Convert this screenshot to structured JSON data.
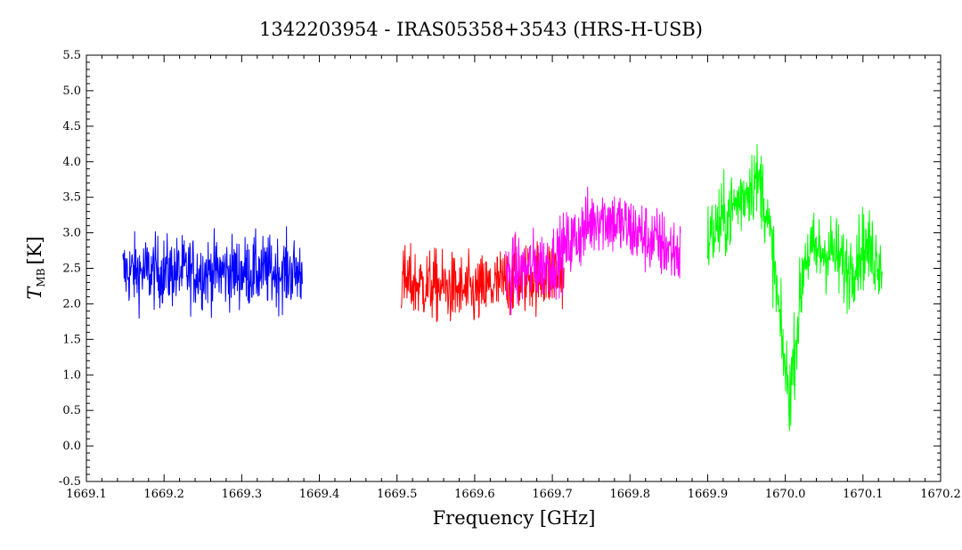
{
  "chart_data": {
    "type": "line",
    "title": "1342203954 - IRAS05358+3543 (HRS-H-USB)",
    "xlabel": "Frequency [GHz]",
    "ylabel_main": "T",
    "ylabel_sub": "MB",
    "ylabel_unit": "[K]",
    "xlim": [
      1669.1,
      1670.2
    ],
    "ylim": [
      -0.5,
      5.5
    ],
    "x_ticks": [
      "1669.1",
      "1669.2",
      "1669.3",
      "1669.4",
      "1669.5",
      "1669.6",
      "1669.7",
      "1669.8",
      "1669.9",
      "1670.0",
      "1670.1",
      "1670.2"
    ],
    "y_ticks": [
      "-0.5",
      "0.0",
      "0.5",
      "1.0",
      "1.5",
      "2.0",
      "2.5",
      "3.0",
      "3.5",
      "4.0",
      "4.5",
      "5.0",
      "5.5"
    ],
    "series": [
      {
        "color": "#0000ff",
        "x_range": [
          1669.147,
          1669.378
        ],
        "profile": [
          [
            1669.147,
            2.45
          ],
          [
            1669.378,
            2.45
          ]
        ],
        "spread": 0.45
      },
      {
        "color": "#ff0000",
        "x_range": [
          1669.505,
          1669.715
        ],
        "profile": [
          [
            1669.505,
            2.3
          ],
          [
            1669.55,
            2.25
          ],
          [
            1669.6,
            2.15
          ],
          [
            1669.65,
            2.35
          ],
          [
            1669.715,
            2.45
          ]
        ],
        "spread": 0.45
      },
      {
        "color": "#ff00ff",
        "x_range": [
          1669.64,
          1669.865
        ],
        "profile": [
          [
            1669.64,
            2.4
          ],
          [
            1669.7,
            2.6
          ],
          [
            1669.76,
            3.25
          ],
          [
            1669.8,
            3.05
          ],
          [
            1669.865,
            2.7
          ]
        ],
        "spread": 0.45
      },
      {
        "color": "#00ff00",
        "x_range": [
          1669.9,
          1670.125
        ],
        "profile": [
          [
            1669.9,
            2.9
          ],
          [
            1669.93,
            3.3
          ],
          [
            1669.96,
            3.75
          ],
          [
            1669.97,
            3.65
          ],
          [
            1669.985,
            2.6
          ],
          [
            1669.995,
            1.5
          ],
          [
            1670.005,
            0.7
          ],
          [
            1670.015,
            1.6
          ],
          [
            1670.025,
            2.7
          ],
          [
            1670.06,
            2.75
          ],
          [
            1670.08,
            2.45
          ],
          [
            1670.1,
            2.8
          ],
          [
            1670.125,
            2.6
          ]
        ],
        "spread": 0.5
      }
    ],
    "grid": false
  }
}
